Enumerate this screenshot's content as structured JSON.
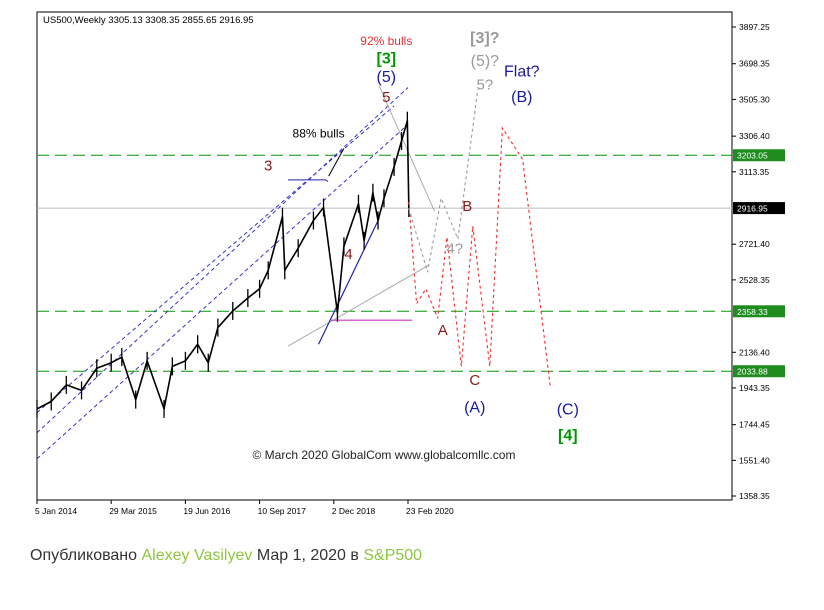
{
  "chart_data": {
    "type": "line",
    "title": "US500,Weekly  3305.13 3308.35 2855.65 2916.95",
    "x_tick_labels": [
      "5 Jan 2014",
      "29 Mar 2015",
      "19 Jun 2016",
      "10 Sep 2017",
      "2 Dec 2018",
      "23 Feb 2020"
    ],
    "y_tick_labels": [
      "3897.25",
      "3698.35",
      "3505.30",
      "3306.40",
      "3113.35",
      "2721.40",
      "2528.35",
      "2136.40",
      "1943.35",
      "1744.45",
      "1551.40",
      "1358.35"
    ],
    "ylim": [
      1358.35,
      3897.25
    ],
    "price_series": {
      "name": "US500 weekly",
      "x": [
        "2014-01-05",
        "2014-04-01",
        "2014-07-01",
        "2014-10-01",
        "2015-01-01",
        "2015-03-29",
        "2015-06-01",
        "2015-08-24",
        "2015-11-01",
        "2016-02-11",
        "2016-04-01",
        "2016-06-19",
        "2016-09-01",
        "2016-11-04",
        "2017-01-01",
        "2017-04-01",
        "2017-07-01",
        "2017-09-10",
        "2017-11-01",
        "2018-01-26",
        "2018-02-09",
        "2018-05-01",
        "2018-08-01",
        "2018-10-01",
        "2018-12-24",
        "2019-02-01",
        "2019-04-30",
        "2019-06-03",
        "2019-07-26",
        "2019-08-26",
        "2019-10-01",
        "2019-12-01",
        "2020-01-15",
        "2020-02-19",
        "2020-02-28"
      ],
      "y": [
        1830,
        1870,
        1960,
        1930,
        2050,
        2080,
        2110,
        1880,
        2090,
        1830,
        2060,
        2090,
        2180,
        2080,
        2270,
        2360,
        2430,
        2480,
        2580,
        2870,
        2580,
        2700,
        2850,
        2920,
        2350,
        2710,
        2940,
        2740,
        3000,
        2850,
        2970,
        3140,
        3280,
        3390,
        2917
      ]
    },
    "horizontal_levels": [
      {
        "value": 3203.05,
        "label": "3203.05",
        "style": "dashed",
        "color": "#009900"
      },
      {
        "value": 2358.33,
        "label": "2358.33",
        "style": "dashed",
        "color": "#009900"
      },
      {
        "value": 2033.88,
        "label": "2033.88",
        "style": "dashed",
        "color": "#009900"
      },
      {
        "value": 2916.95,
        "label": "2916.95",
        "style": "solid",
        "color": "#bbbbbb"
      }
    ],
    "projection_red": {
      "color": "#ff2a2a",
      "x": [
        "2020-02-28",
        "2020-04-15",
        "2020-06-10",
        "2020-08-20",
        "2020-10-15",
        "2021-01-10",
        "2021-03-20",
        "2021-07-01",
        "2021-09-15",
        "2022-01-15",
        "2022-07-01"
      ],
      "y": [
        2950,
        2400,
        2480,
        2320,
        2760,
        2060,
        2820,
        2060,
        3350,
        3180,
        1950
      ]
    },
    "projection_grey": {
      "color": "#999999",
      "x": [
        "2020-02-28",
        "2020-06-20",
        "2020-09-10",
        "2020-12-20",
        "2021-04-20"
      ],
      "y": [
        2917,
        2570,
        2970,
        2750,
        3560
      ]
    },
    "annotations": [
      {
        "text": "92% bulls",
        "color": "#e03030",
        "x": "2019-10-15",
        "y": 3800
      },
      {
        "text": "[3]",
        "color": "#009900",
        "x": "2019-10-15",
        "y": 3700
      },
      {
        "text": "(5)",
        "color": "#1a1aa0",
        "x": "2019-10-15",
        "y": 3600
      },
      {
        "text": "5",
        "color": "#8b1a1a",
        "x": "2019-10-15",
        "y": 3490
      },
      {
        "text": "88% bulls",
        "color": "#000000",
        "x": "2018-09-01",
        "y": 3300
      },
      {
        "text": "3",
        "color": "#8b1a1a",
        "x": "2017-11-01",
        "y": 3120
      },
      {
        "text": "4",
        "color": "#8b1a1a",
        "x": "2019-03-01",
        "y": 2640
      },
      {
        "text": "[3]?",
        "color": "#999999",
        "x": "2021-06-01",
        "y": 3810
      },
      {
        "text": "(5)?",
        "color": "#999999",
        "x": "2021-06-01",
        "y": 3685
      },
      {
        "text": "5?",
        "color": "#999999",
        "x": "2021-06-01",
        "y": 3560
      },
      {
        "text": "4?",
        "color": "#999999",
        "x": "2020-12-01",
        "y": 2670
      },
      {
        "text": "Flat?",
        "color": "#1a1aa0",
        "x": "2022-01-10",
        "y": 3630
      },
      {
        "text": "(B)",
        "color": "#1a1aa0",
        "x": "2022-01-10",
        "y": 3490
      },
      {
        "text": "B",
        "color": "#8b1a1a",
        "x": "2021-02-15",
        "y": 2900
      },
      {
        "text": "A",
        "color": "#8b1a1a",
        "x": "2020-09-20",
        "y": 2230
      },
      {
        "text": "C",
        "color": "#8b1a1a",
        "x": "2021-04-01",
        "y": 1960
      },
      {
        "text": "(A)",
        "color": "#1a1aa0",
        "x": "2021-04-01",
        "y": 1810
      },
      {
        "text": "(C)",
        "color": "#1a1aa0",
        "x": "2022-10-15",
        "y": 1800
      },
      {
        "text": "[4]",
        "color": "#009900",
        "x": "2022-10-15",
        "y": 1660
      },
      {
        "text": "© March 2020 GlobalCom www.globalcomllc.com",
        "color": "#222222",
        "x": "2019-10-01",
        "y": 1560
      }
    ],
    "grid": false,
    "legend": "none"
  },
  "caption": {
    "prefix": "Опубликовано",
    "author": "Alexey Vasilyev",
    "date_text": "Мар 1, 2020 в",
    "symbol": "S&P500"
  }
}
